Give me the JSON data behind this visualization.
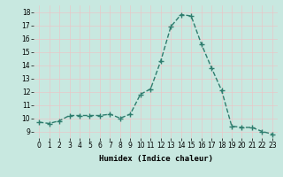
{
  "x": [
    0,
    1,
    2,
    3,
    4,
    5,
    6,
    7,
    8,
    9,
    10,
    11,
    12,
    13,
    14,
    15,
    16,
    17,
    18,
    19,
    20,
    21,
    22,
    23
  ],
  "y": [
    9.7,
    9.6,
    9.8,
    10.2,
    10.2,
    10.2,
    10.2,
    10.3,
    10.0,
    10.3,
    11.8,
    12.2,
    14.3,
    16.9,
    17.8,
    17.7,
    15.6,
    13.8,
    12.1,
    9.4,
    9.3,
    9.3,
    9.0,
    8.8
  ],
  "line_color": "#2e7d6e",
  "marker": "+",
  "marker_size": 4,
  "marker_lw": 1.0,
  "line_width": 1.0,
  "linestyle": "--",
  "bg_color": "#c8e8e0",
  "grid_color": "#e8c8c8",
  "xlabel": "Humidex (Indice chaleur)",
  "ylim": [
    8.5,
    18.5
  ],
  "xlim": [
    -0.5,
    23.5
  ],
  "yticks": [
    9,
    10,
    11,
    12,
    13,
    14,
    15,
    16,
    17,
    18
  ],
  "xticks": [
    0,
    1,
    2,
    3,
    4,
    5,
    6,
    7,
    8,
    9,
    10,
    11,
    12,
    13,
    14,
    15,
    16,
    17,
    18,
    19,
    20,
    21,
    22,
    23
  ],
  "xtick_labels": [
    "0",
    "1",
    "2",
    "3",
    "4",
    "5",
    "6",
    "7",
    "8",
    "9",
    "10",
    "11",
    "12",
    "13",
    "14",
    "15",
    "16",
    "17",
    "18",
    "19",
    "20",
    "21",
    "22",
    "23"
  ],
  "tick_fontsize": 5.5,
  "label_fontsize": 6.5,
  "label_fontfamily": "monospace",
  "label_fontweight": "bold"
}
